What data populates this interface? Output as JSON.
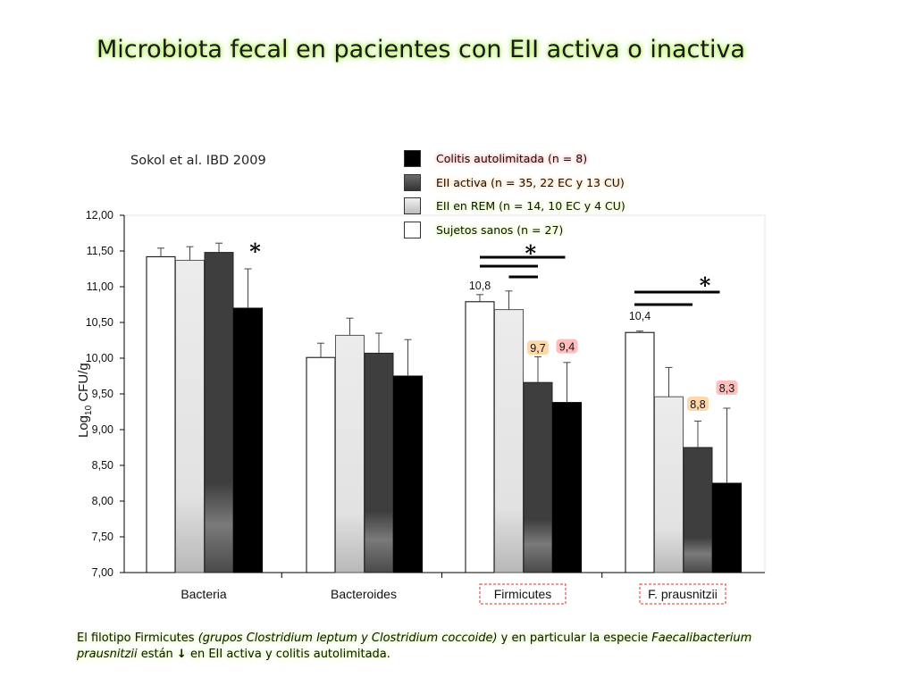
{
  "title": "Microbiota fecal en pacientes con EII activa o inactiva",
  "citation": "Sokol et al. IBD 2009",
  "legend": [
    {
      "label": "Colitis autolimitada (n = 8)",
      "color": "#000000",
      "glow": "red"
    },
    {
      "label": "EII activa (n = 35, 22 EC y 13 CU)",
      "color": "#555555",
      "glow": "orange"
    },
    {
      "label": "EII en REM (n = 14, 10 EC y 4 CU)",
      "color": "#d9d9d9",
      "glow": "lime"
    },
    {
      "label": "Sujetos sanos (n = 27)",
      "color": "#ffffff",
      "glow": "lime"
    }
  ],
  "note": {
    "part1": "El filotipo Firmicutes ",
    "part2_italic": "(grupos Clostridium leptum y Clostridium coccoide)",
    "part3": " y en particular la especie ",
    "part4_italic": "Faecalibacterium prausnitzii",
    "part5": " están ",
    "part6": " en EII activa y colitis autolimitada."
  },
  "chart_data": {
    "type": "bar",
    "ylabel": "Log10 CFU/g",
    "ylim": [
      7.0,
      12.0
    ],
    "yticks": [
      "7,00",
      "7,50",
      "8,00",
      "8,50",
      "9,00",
      "9,50",
      "10,00",
      "10,50",
      "11,00",
      "11,50",
      "12,00"
    ],
    "categories": [
      "Bacteria",
      "Bacteroides",
      "Firmicutes",
      "F. prausnitzii"
    ],
    "highlighted_categories": [
      "Firmicutes",
      "F. prausnitzii"
    ],
    "series": [
      {
        "name": "Sujetos sanos (n = 27)",
        "color": "#ffffff",
        "values": [
          11.42,
          10.01,
          10.79,
          10.36
        ],
        "errors": [
          0.12,
          0.2,
          0.1,
          0.02
        ]
      },
      {
        "name": "EII en REM (n = 14, 10 EC y 4 CU)",
        "color": "#e6e6e6",
        "values": [
          11.37,
          10.32,
          10.68,
          9.46
        ],
        "errors": [
          0.19,
          0.24,
          0.26,
          0.41
        ]
      },
      {
        "name": "EII activa (n = 35, 22 EC y 13 CU)",
        "color": "#444444",
        "values": [
          11.48,
          10.07,
          9.66,
          8.75
        ],
        "errors": [
          0.13,
          0.28,
          0.36,
          0.37
        ]
      },
      {
        "name": "Colitis autolimitada (n = 8)",
        "color": "#000000",
        "values": [
          10.7,
          9.75,
          9.38,
          8.25
        ],
        "errors": [
          0.55,
          0.51,
          0.56,
          1.05
        ]
      }
    ],
    "data_labels": [
      {
        "category": "Firmicutes",
        "series": 0,
        "text": "10,8"
      },
      {
        "category": "Firmicutes",
        "series": 2,
        "text": "9,7"
      },
      {
        "category": "Firmicutes",
        "series": 3,
        "text": "9,4"
      },
      {
        "category": "F. prausnitzii",
        "series": 0,
        "text": "10,4"
      },
      {
        "category": "F. prausnitzii",
        "series": 2,
        "text": "8,8"
      },
      {
        "category": "F. prausnitzii",
        "series": 3,
        "text": "8,3"
      }
    ],
    "significance_marker": "*"
  }
}
